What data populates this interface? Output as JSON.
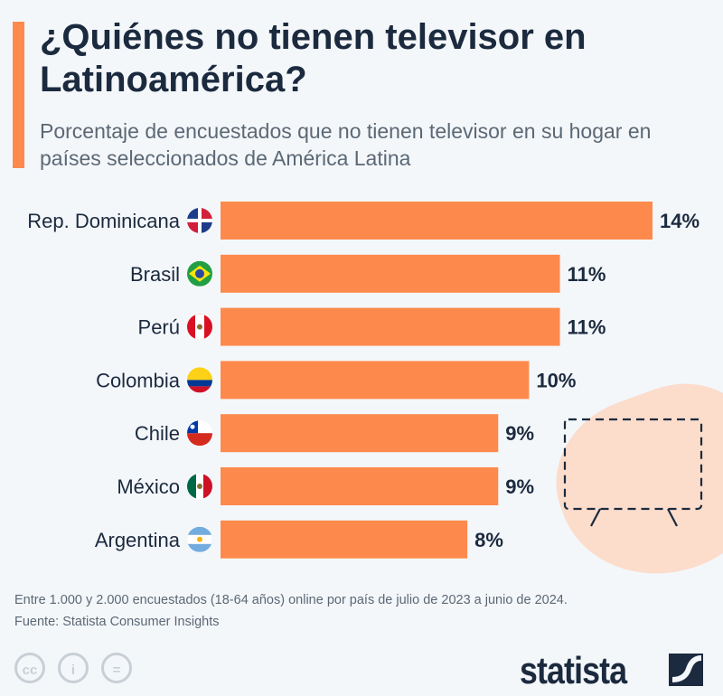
{
  "title": "¿Quiénes no tienen televisor en Latinoamérica?",
  "subtitle": "Porcentaje de encuestados que no tienen televisor en su hogar en países seleccionados de América Latina",
  "footnote": "Entre 1.000 y 2.000 encuestados (18-64 años) online por país de julio de 2023 a junio de 2024.",
  "source": "Fuente: Statista Consumer Insights",
  "logo": "statista",
  "license_icons": [
    "cc-icon",
    "by-icon",
    "nd-icon"
  ],
  "colors": {
    "bar": "#fd8a4c",
    "text": "#1b2a3e",
    "background": "#f4f7fa"
  },
  "chart_data": {
    "type": "bar",
    "orientation": "horizontal",
    "categories": [
      "Rep. Dominicana",
      "Brasil",
      "Perú",
      "Colombia",
      "Chile",
      "México",
      "Argentina"
    ],
    "values": [
      14,
      11,
      11,
      10,
      9,
      9,
      8
    ],
    "data_labels": [
      "14%",
      "11%",
      "11%",
      "10%",
      "9%",
      "9%",
      "8%"
    ],
    "flags": [
      "flag-dominican-republic",
      "flag-brazil",
      "flag-peru",
      "flag-colombia",
      "flag-chile",
      "flag-mexico",
      "flag-argentina"
    ],
    "unit": "%",
    "xlim": [
      0,
      14
    ],
    "grid": false
  }
}
